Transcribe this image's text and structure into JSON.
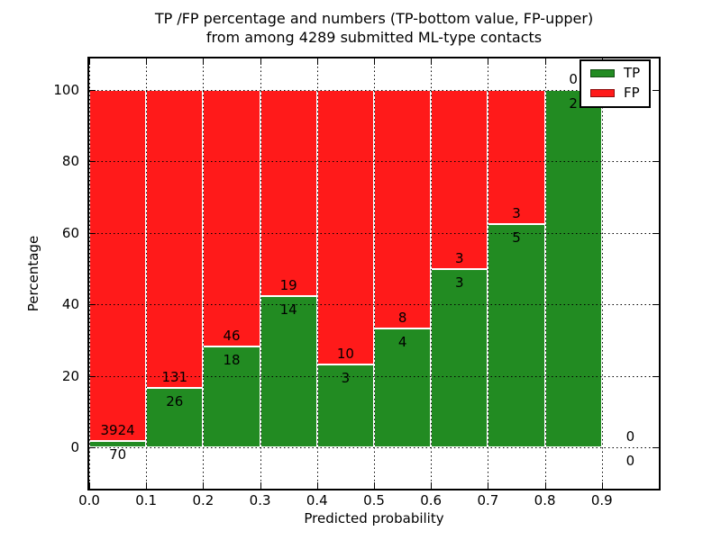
{
  "title": {
    "line1": "TP /FP percentage and numbers (TP-bottom value, FP-upper)",
    "line2": "from among 4289 submitted ML-type contacts"
  },
  "chart_data": {
    "type": "bar",
    "stacked": true,
    "title": "TP /FP percentage and numbers (TP-bottom value, FP-upper) from among 4289 submitted ML-type contacts",
    "xlabel": "Predicted probability",
    "ylabel": "Percentage",
    "total_contacts": 4289,
    "bin_starts": [
      0.0,
      0.1,
      0.2,
      0.3,
      0.4,
      0.5,
      0.6,
      0.7,
      0.8,
      0.9
    ],
    "bin_width": 0.1,
    "series": [
      {
        "name": "TP",
        "color": "#228b22",
        "counts": [
          70,
          26,
          18,
          14,
          3,
          4,
          3,
          5,
          2,
          0
        ]
      },
      {
        "name": "FP",
        "color": "#ff1a1a",
        "counts": [
          3924,
          131,
          46,
          19,
          10,
          8,
          3,
          3,
          0,
          0
        ]
      }
    ],
    "percent_tp_by_bin": [
      1.75,
      16.56,
      28.13,
      42.42,
      23.08,
      33.33,
      50.0,
      62.5,
      100.0,
      null
    ],
    "annotation_rule": "FP count above top of green segment, TP count below it, centered on each bin",
    "xticks": [
      "0.0",
      "0.1",
      "0.2",
      "0.3",
      "0.4",
      "0.5",
      "0.6",
      "0.7",
      "0.8",
      "0.9"
    ],
    "yticks": [
      "0",
      "20",
      "40",
      "60",
      "80",
      "100"
    ],
    "xlim": [
      0.0,
      1.0
    ],
    "ylim": [
      -10,
      110
    ],
    "grid": "dotted",
    "legend_position": "upper-right",
    "legend_entries": [
      "TP",
      "FP"
    ]
  },
  "colors": {
    "tp_green": "#228b22",
    "fp_red": "#ff1a1a",
    "grid": "#000000",
    "spine": "#000000",
    "background": "#ffffff"
  }
}
